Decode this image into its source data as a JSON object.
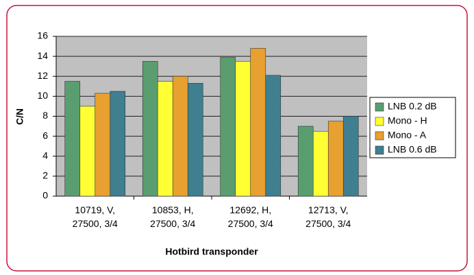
{
  "chart_data": {
    "type": "bar",
    "x_label": "Hotbird transponder",
    "y_label": "C/N",
    "categories": [
      "10719, V, 27500, 3/4",
      "10853, H, 27500, 3/4",
      "12692, H, 27500, 3/4",
      "12713, V, 27500, 3/4"
    ],
    "series": [
      {
        "name": "LNB 0.2 dB",
        "color": "#5a9e6f",
        "values": [
          11.5,
          13.5,
          13.9,
          7.0
        ]
      },
      {
        "name": "Mono - H",
        "color": "#ffff33",
        "values": [
          9.0,
          11.5,
          13.5,
          6.5
        ]
      },
      {
        "name": "Mono - A",
        "color": "#e8a030",
        "values": [
          10.3,
          12.0,
          14.8,
          7.5
        ]
      },
      {
        "name": "LNB 0.6 dB",
        "color": "#3f7f8f",
        "values": [
          10.5,
          11.3,
          12.1,
          8.0
        ]
      }
    ],
    "ylim": [
      0,
      16
    ],
    "yticks": [
      0,
      2,
      4,
      6,
      8,
      10,
      12,
      14,
      16
    ],
    "grid": true,
    "legend": "right"
  }
}
